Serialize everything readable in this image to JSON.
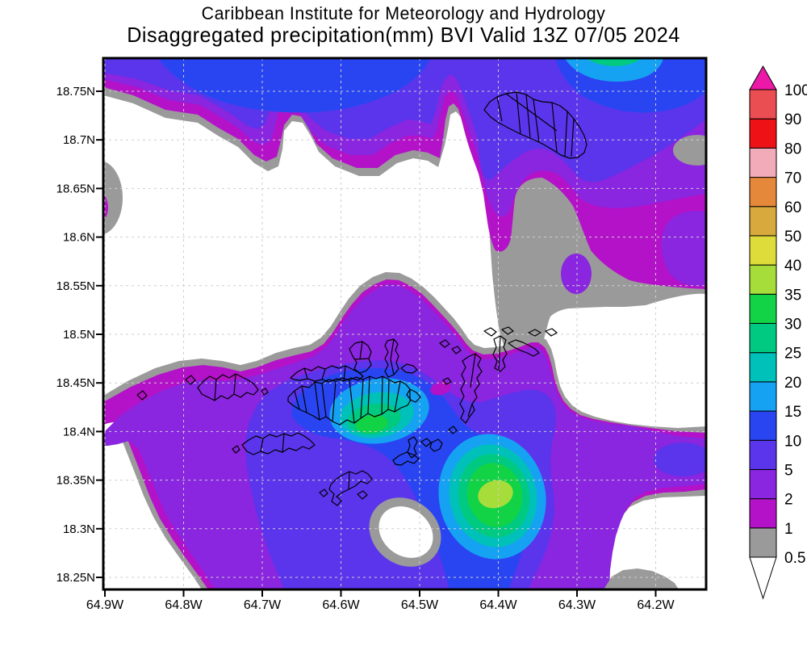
{
  "title": {
    "line1": "Caribbean Institute for Meteorology and Hydrology",
    "line2": "Disaggregated precipitation(mm) BVI Valid 13Z 07/05 2024"
  },
  "axes": {
    "y_ticks": [
      {
        "label": "18.75N",
        "lat": 18.75
      },
      {
        "label": "18.7N",
        "lat": 18.7
      },
      {
        "label": "18.65N",
        "lat": 18.65
      },
      {
        "label": "18.6N",
        "lat": 18.6
      },
      {
        "label": "18.55N",
        "lat": 18.55
      },
      {
        "label": "18.5N",
        "lat": 18.5
      },
      {
        "label": "18.45N",
        "lat": 18.45
      },
      {
        "label": "18.4N",
        "lat": 18.4
      },
      {
        "label": "18.35N",
        "lat": 18.35
      },
      {
        "label": "18.3N",
        "lat": 18.3
      },
      {
        "label": "18.25N",
        "lat": 18.25
      }
    ],
    "x_ticks": [
      {
        "label": "64.9W",
        "lon": 64.9
      },
      {
        "label": "64.8W",
        "lon": 64.8
      },
      {
        "label": "64.7W",
        "lon": 64.7
      },
      {
        "label": "64.6W",
        "lon": 64.6
      },
      {
        "label": "64.5W",
        "lon": 64.5
      },
      {
        "label": "64.4W",
        "lon": 64.4
      },
      {
        "label": "64.3W",
        "lon": 64.3
      },
      {
        "label": "64.2W",
        "lon": 64.2
      }
    ]
  },
  "colorbar": {
    "boundary_labels_bottom_to_top": [
      "0.5",
      "1",
      "2",
      "5",
      "10",
      "15",
      "20",
      "25",
      "30",
      "35",
      "40",
      "50",
      "60",
      "70",
      "80",
      "90",
      "100"
    ],
    "segments_bottom_to_top": [
      {
        "id": "c05",
        "range": "0.5-1",
        "color": "#9a9a9a"
      },
      {
        "id": "c1",
        "range": "1-2",
        "color": "#b412c8"
      },
      {
        "id": "c2",
        "range": "2-5",
        "color": "#8a25e0"
      },
      {
        "id": "c5",
        "range": "5-10",
        "color": "#5a35ec"
      },
      {
        "id": "c10",
        "range": "10-15",
        "color": "#2945f2"
      },
      {
        "id": "c15",
        "range": "15-20",
        "color": "#16a2f3"
      },
      {
        "id": "c20",
        "range": "20-25",
        "color": "#00c0ba"
      },
      {
        "id": "c25",
        "range": "25-30",
        "color": "#00ca82"
      },
      {
        "id": "c30",
        "range": "30-35",
        "color": "#12d245"
      },
      {
        "id": "c35",
        "range": "35-40",
        "color": "#a6dd3a"
      },
      {
        "id": "c40",
        "range": "40-50",
        "color": "#dedc3a"
      },
      {
        "id": "c50",
        "range": "50-60",
        "color": "#d8a93c"
      },
      {
        "id": "c60",
        "range": "60-70",
        "color": "#e5883a"
      },
      {
        "id": "c70",
        "range": "70-80",
        "color": "#f2abb8"
      },
      {
        "id": "c80",
        "range": "80-90",
        "color": "#ee1217"
      },
      {
        "id": "c90",
        "range": "90-100",
        "color": "#ea4d52"
      }
    ],
    "over_arrow_color": "#ec18a8",
    "under_arrow_color": "#ffffff"
  },
  "chart_data": {
    "type": "heatmap",
    "title": "Caribbean Institute for Meteorology and Hydrology",
    "subtitle": "Disaggregated precipitation(mm) BVI Valid 13Z 07/05 2024",
    "units": "mm",
    "x_axis_tick_labels": [
      "64.9W",
      "64.8W",
      "64.7W",
      "64.6W",
      "64.5W",
      "64.4W",
      "64.3W",
      "64.2W"
    ],
    "y_axis_tick_labels": [
      "18.75N",
      "18.7N",
      "18.65N",
      "18.6N",
      "18.55N",
      "18.5N",
      "18.45N",
      "18.4N",
      "18.35N",
      "18.3N",
      "18.25N"
    ],
    "x_range_degW": [
      64.9,
      64.14
    ],
    "y_range_degN": [
      18.24,
      18.78
    ],
    "grid": "dashed lat/lon graticule every 0.1W and 0.05N",
    "legend_position": "right colorbar with over/under arrows",
    "contour_levels_mm": [
      0.5,
      1,
      2,
      5,
      10,
      15,
      20,
      25,
      30,
      35,
      40,
      50,
      60,
      70,
      80,
      90,
      100
    ],
    "palette_low_to_high": [
      "#9a9a9a",
      "#b412c8",
      "#8a25e0",
      "#5a35ec",
      "#2945f2",
      "#16a2f3",
      "#00c0ba",
      "#00ca82",
      "#12d245",
      "#a6dd3a",
      "#dedc3a",
      "#d8a93c",
      "#e5883a",
      "#f2abb8",
      "#ee1217",
      "#ea4d52",
      "#ec18a8"
    ],
    "overlays": "BVI island outlines drawn in black",
    "features": [
      {
        "name": "northern band",
        "desc": "rain band 2-15 mm along the north edge with 10-15 mm cores; small 25-30 mm core at top near 64.42W"
      },
      {
        "name": "Tortola cell",
        "desc": "local maximum 30-35 mm just south of the central islands near 64.57W, 18.40N"
      },
      {
        "name": "southeast cell",
        "desc": "strongest cell 35-40 mm near 64.40W, 18.34N"
      },
      {
        "name": "dry areas",
        "desc": "precip-free (< 0.5 mm) regions west-center, east-center and bottom-right corner"
      },
      {
        "name": "weak spots",
        "desc": "sub-1 mm gray dips embedded in the band at right edge near 18.68N and small 1-2 mm spot near 64.47W 18.45N"
      }
    ]
  }
}
